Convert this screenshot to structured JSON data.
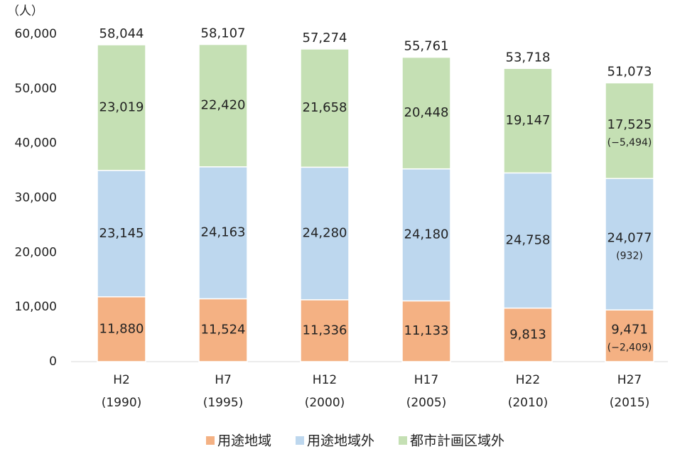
{
  "chart_data": {
    "type": "stacked_bar",
    "ylabel": "（人）",
    "categories": [
      [
        "H2",
        "(1990)"
      ],
      [
        "H7",
        "(1995)"
      ],
      [
        "H12",
        "(2000)"
      ],
      [
        "H17",
        "(2005)"
      ],
      [
        "H22",
        "(2010)"
      ],
      [
        "H27",
        "(2015)"
      ]
    ],
    "series": [
      {
        "name": "用途地域",
        "color": "#f4b183",
        "values": [
          11880,
          11524,
          11336,
          11133,
          9813,
          9471
        ],
        "value_labels": [
          "11,880",
          "11,524",
          "11,336",
          "11,133",
          "9,813",
          "9,471"
        ]
      },
      {
        "name": "用途地域外",
        "color": "#bdd7ee",
        "values": [
          23145,
          24163,
          24280,
          24180,
          24758,
          24077
        ],
        "value_labels": [
          "23,145",
          "24,163",
          "24,280",
          "24,180",
          "24,758",
          "24,077"
        ]
      },
      {
        "name": "都市計画区域外",
        "color": "#c5e0b4",
        "values": [
          23019,
          22420,
          21658,
          20448,
          19147,
          17525
        ],
        "value_labels": [
          "23,019",
          "22,420",
          "21,658",
          "20,448",
          "19,147",
          "17,525"
        ]
      }
    ],
    "totals": [
      58044,
      58107,
      57274,
      55761,
      53718,
      51073
    ],
    "total_labels": [
      "58,044",
      "58,107",
      "57,274",
      "55,761",
      "53,718",
      "51,073"
    ],
    "annotations": [
      {
        "series": 0,
        "category": 5,
        "text": "(−2,409)"
      },
      {
        "series": 1,
        "category": 5,
        "text": "(932)"
      },
      {
        "series": 2,
        "category": 5,
        "text": "(−5,494)"
      }
    ],
    "ylim": [
      0,
      60000
    ],
    "yticks": [
      0,
      {
        "value": 10000,
        "label": "10,000"
      },
      {
        "value": 20000,
        "label": "20,000"
      },
      {
        "value": 30000,
        "label": "30,000"
      },
      {
        "value": 40000,
        "label": "40,000"
      },
      {
        "value": 50000,
        "label": "50,000"
      },
      {
        "value": 60000,
        "label": "60,000"
      }
    ],
    "legend": "bottom"
  }
}
